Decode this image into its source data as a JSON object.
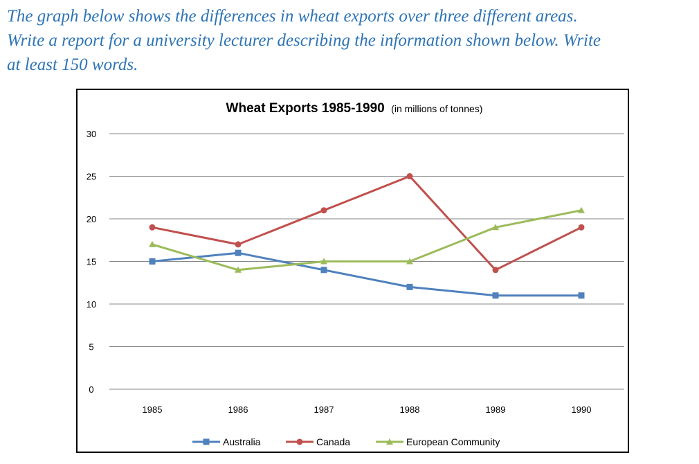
{
  "prompt": {
    "line1": "The graph below shows the differences in wheat exports over three different areas.",
    "line2": "Write a report for a university lecturer describing the information shown below. Write",
    "line3": "at least 150 words."
  },
  "chart_data": {
    "type": "line",
    "title": "Wheat Exports 1985-1990",
    "subtitle": "(in millions of tonnes)",
    "xlabel": "",
    "ylabel": "",
    "categories": [
      "1985",
      "1986",
      "1987",
      "1988",
      "1989",
      "1990"
    ],
    "ylim": [
      0,
      30
    ],
    "yticks": [
      0,
      5,
      10,
      15,
      20,
      25,
      30
    ],
    "grid": true,
    "legend_position": "bottom",
    "series": [
      {
        "name": "Australia",
        "color": "#4f81bd",
        "marker": "square",
        "values": [
          15,
          16,
          14,
          12,
          11,
          11
        ]
      },
      {
        "name": "Canada",
        "color": "#c0504d",
        "marker": "circle",
        "values": [
          19,
          17,
          21,
          25,
          14,
          19
        ]
      },
      {
        "name": "European Community",
        "color": "#9bbb59",
        "marker": "triangle",
        "values": [
          17,
          14,
          15,
          15,
          19,
          21
        ]
      }
    ]
  }
}
